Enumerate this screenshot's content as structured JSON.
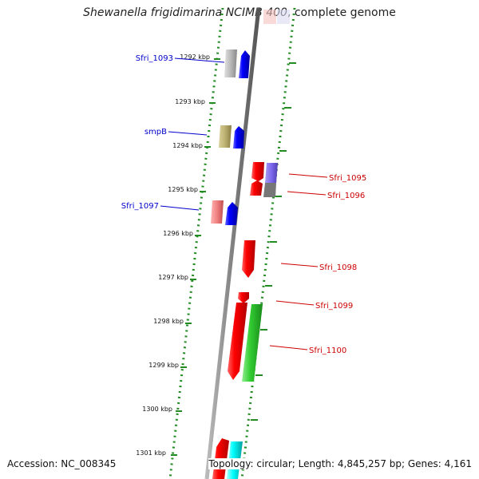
{
  "title": {
    "species": "Shewanella frigidimarina NCIMB 400",
    "suffix": ", complete genome"
  },
  "footer": {
    "accession": "Accession: NC_008345",
    "topology": "Topology: circular; Length: 4,845,257 bp; Genes: 4,161"
  },
  "colors": {
    "backbone": "#808080",
    "dotted_track": "#228b22",
    "left_label": "#0000cc",
    "right_label": "#cc0000"
  },
  "ticks": [
    "1292 kbp",
    "1293 kbp",
    "1294 kbp",
    "1295 kbp",
    "1296 kbp",
    "1297 kbp",
    "1298 kbp",
    "1299 kbp",
    "1300 kbp",
    "1301 kbp"
  ],
  "labels": {
    "left": [
      "Sfri_1093",
      "smpB",
      "Sfri_1097"
    ],
    "right": [
      "Sfri_1095",
      "Sfri_1096",
      "Sfri_1098",
      "Sfri_1099",
      "Sfri_1100"
    ]
  }
}
